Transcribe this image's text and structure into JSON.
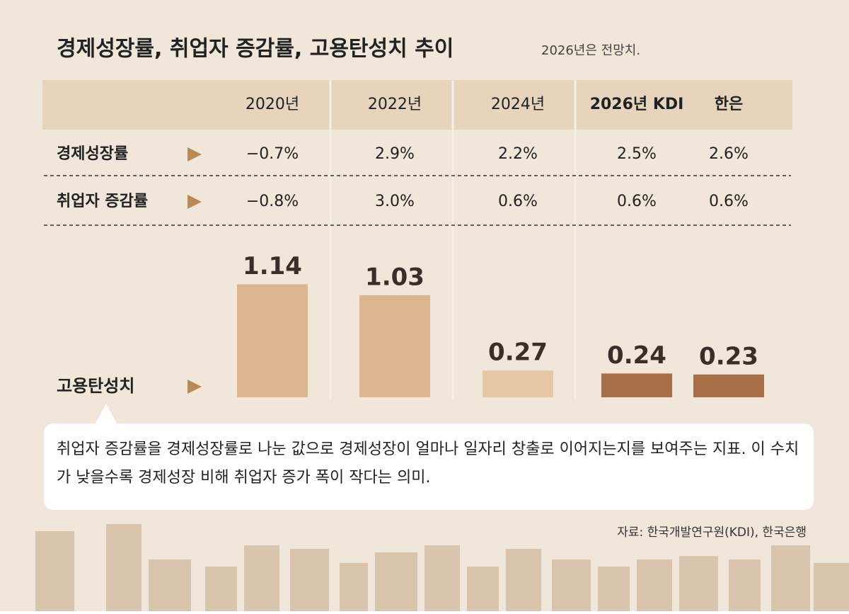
{
  "title": "경제성장률, 취업자 증감률, 고용탄성치 추이",
  "subtitle": "2026년은 전망치.",
  "rows": [
    {
      "label": "경제성장률",
      "cells": [
        "−0.7%",
        "2.9%",
        "2.2%",
        "2.5%",
        "2.6%"
      ]
    },
    {
      "label": "취업자 증감률",
      "cells": [
        "−0.8%",
        "3.0%",
        "0.6%",
        "0.6%",
        "0.6%"
      ]
    }
  ],
  "chart_data": {
    "type": "bar",
    "title": "고용탄성치",
    "categories": [
      "2020년",
      "2022년",
      "2024년",
      "2026년 KDI",
      "한은"
    ],
    "values": [
      1.14,
      1.03,
      0.27,
      0.24,
      0.23
    ],
    "colors": [
      "#dcb68f",
      "#dcb68f",
      "#e6c7a3",
      "#a86f47",
      "#a86f47"
    ]
  },
  "note": "취업자 증감률을 경제성장률로 나눈 값으로 경제성장이 얼마나 일자리 창출로 이어지는지를 보여주는 지표. 이 수치가 낮을수록 경제성장 비해 취업자 증가 폭이 작다는 의미.",
  "source": "자료: 한국개발연구원(KDI), 한국은행"
}
